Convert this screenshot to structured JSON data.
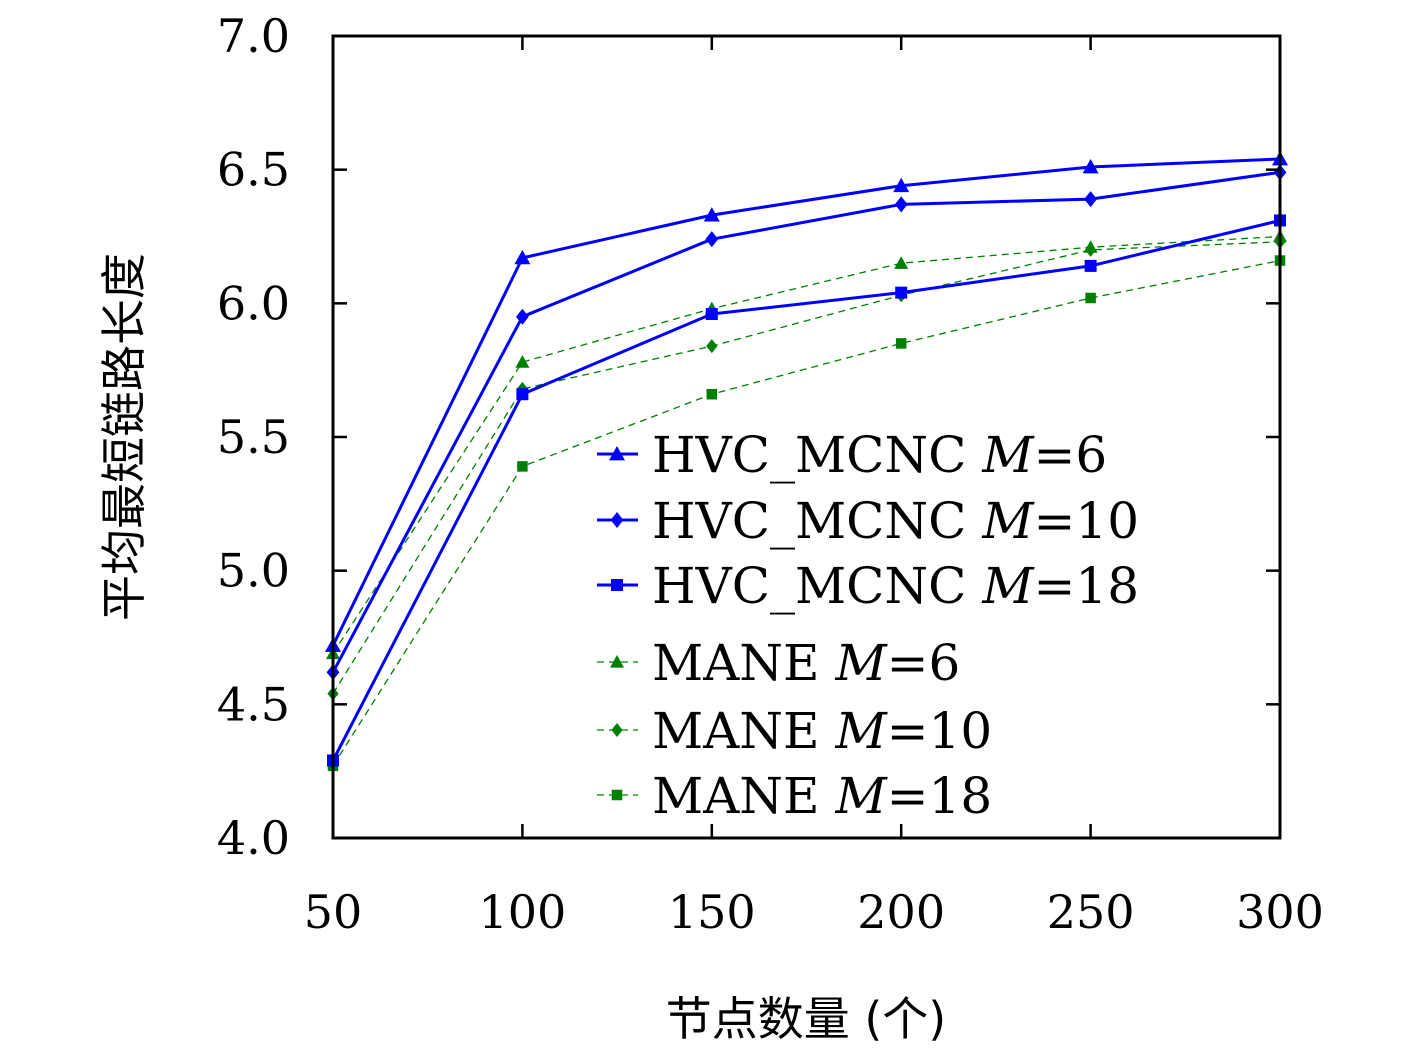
{
  "chart_data": {
    "type": "line",
    "xlabel": "节点数量 (个)",
    "ylabel": "平均最短链路长度",
    "x": [
      50,
      100,
      150,
      200,
      250,
      300
    ],
    "xticks": [
      "50",
      "100",
      "150",
      "200",
      "250",
      "300"
    ],
    "yticks": [
      "4.0",
      "4.5",
      "5.0",
      "5.5",
      "6.0",
      "6.5",
      "7.0"
    ],
    "xlim": [
      50,
      300
    ],
    "ylim": [
      4.0,
      7.0
    ],
    "grid": false,
    "legend_position": "bottom-right",
    "series": [
      {
        "name": "HVC_MCNC",
        "param": "M",
        "param_value": "6",
        "color": "#0000ff",
        "marker": "triangle",
        "style": "solid",
        "values": [
          4.72,
          6.17,
          6.33,
          6.44,
          6.51,
          6.54
        ]
      },
      {
        "name": "HVC_MCNC",
        "param": "M",
        "param_value": "10",
        "color": "#0000ff",
        "marker": "diamond",
        "style": "solid",
        "values": [
          4.62,
          5.95,
          6.24,
          6.37,
          6.39,
          6.49
        ]
      },
      {
        "name": "HVC_MCNC",
        "param": "M",
        "param_value": "18",
        "color": "#0000ff",
        "marker": "square",
        "style": "solid",
        "values": [
          4.29,
          5.66,
          5.96,
          6.04,
          6.14,
          6.31
        ]
      },
      {
        "name": "MANE",
        "param": "M",
        "param_value": "6",
        "color": "#008000",
        "marker": "triangle",
        "style": "dashed",
        "values": [
          4.69,
          5.78,
          5.98,
          6.15,
          6.21,
          6.25
        ]
      },
      {
        "name": "MANE",
        "param": "M",
        "param_value": "10",
        "color": "#008000",
        "marker": "diamond",
        "style": "dashed",
        "values": [
          4.54,
          5.68,
          5.84,
          6.03,
          6.2,
          6.23
        ]
      },
      {
        "name": "MANE",
        "param": "M",
        "param_value": "18",
        "color": "#008000",
        "marker": "square",
        "style": "dashed",
        "values": [
          4.27,
          5.39,
          5.66,
          5.85,
          6.02,
          6.16
        ]
      }
    ]
  }
}
